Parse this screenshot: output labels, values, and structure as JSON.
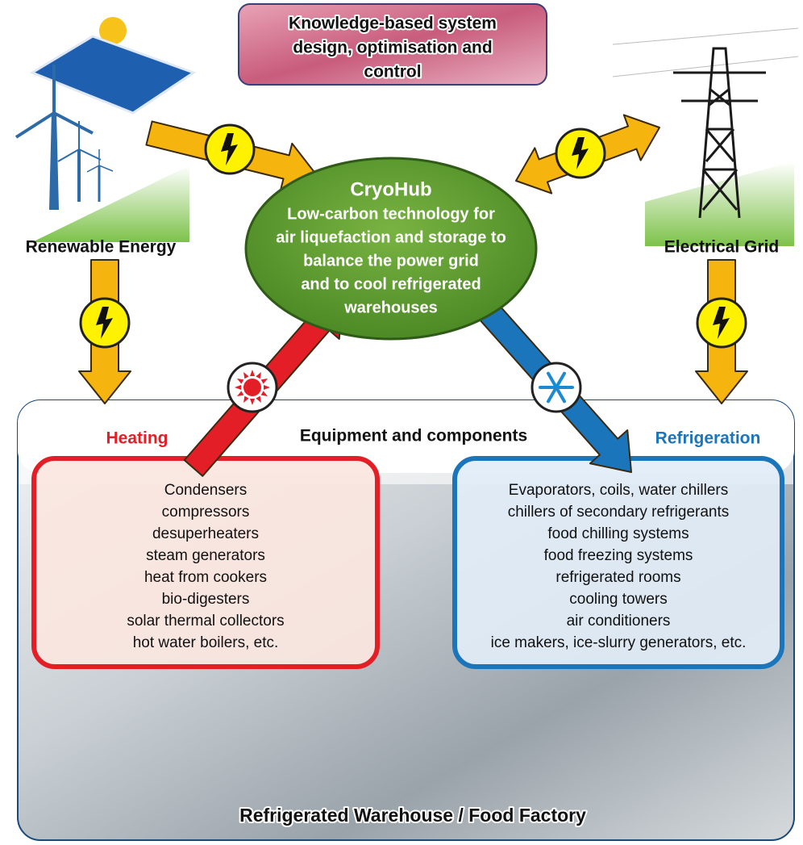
{
  "top_box": {
    "lines": [
      "Knowledge-based system",
      "design, optimisation and",
      "control"
    ]
  },
  "center": {
    "title": "CryoHub",
    "lines": [
      "Low-carbon technology for",
      "air liquefaction and storage to",
      "balance the power grid",
      "and to cool refrigerated",
      "warehouses"
    ]
  },
  "left_label": "Renewable Energy",
  "right_label": "Electrical Grid",
  "panel": {
    "heading": "Equipment and components",
    "footer": "Refrigerated Warehouse / Food Factory"
  },
  "heating": {
    "title": "Heating",
    "items": [
      "Condensers",
      "compressors",
      "desuperheaters",
      "steam generators",
      "heat from cookers",
      "bio-digesters",
      "solar thermal collectors",
      "hot water boilers, etc."
    ]
  },
  "refrigeration": {
    "title": "Refrigeration",
    "items": [
      "Evaporators, coils, water chillers",
      "chillers of secondary refrigerants",
      "food chilling systems",
      "food freezing systems",
      "refrigerated rooms",
      "cooling towers",
      "air conditioners",
      "ice makers, ice-slurry generators, etc."
    ]
  }
}
